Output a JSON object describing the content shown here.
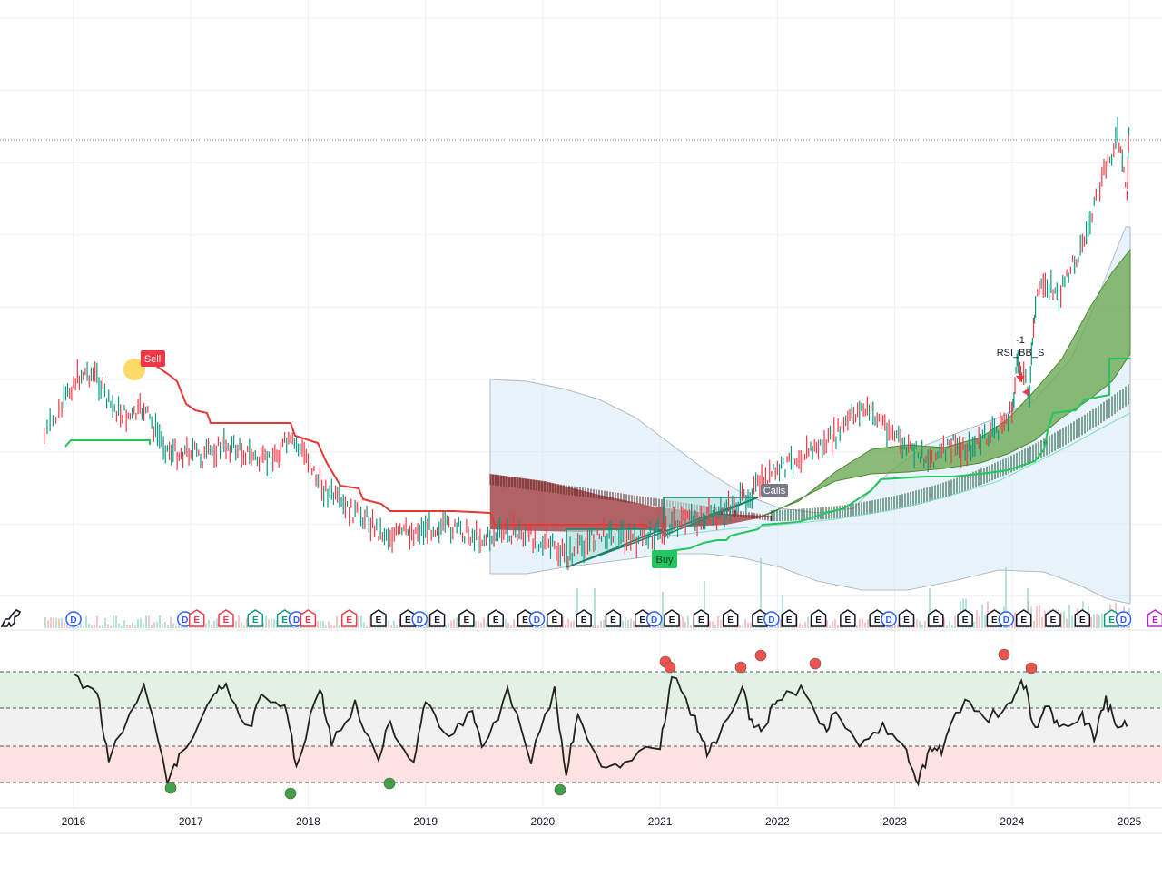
{
  "chart_data": {
    "type": "line",
    "x_axis": {
      "ticks": [
        "2016",
        "2017",
        "2018",
        "2019",
        "2020",
        "2021",
        "2022",
        "2023",
        "2024",
        "2025"
      ]
    },
    "price": {
      "series_type": "candlestick",
      "up_color": "#089981",
      "down_color": "#f23645",
      "points": [
        [
          2015.75,
          480
        ],
        [
          2015.9,
          450
        ],
        [
          2016.0,
          420
        ],
        [
          2016.1,
          410
        ],
        [
          2016.2,
          415
        ],
        [
          2016.3,
          445
        ],
        [
          2016.4,
          455
        ],
        [
          2016.5,
          460
        ],
        [
          2016.6,
          450
        ],
        [
          2016.7,
          475
        ],
        [
          2016.8,
          495
        ],
        [
          2016.9,
          500
        ],
        [
          2017.0,
          495
        ],
        [
          2017.1,
          505
        ],
        [
          2017.2,
          495
        ],
        [
          2017.3,
          490
        ],
        [
          2017.4,
          495
        ],
        [
          2017.5,
          500
        ],
        [
          2017.6,
          510
        ],
        [
          2017.7,
          505
        ],
        [
          2017.8,
          490
        ],
        [
          2017.9,
          490
        ],
        [
          2018.0,
          505
        ],
        [
          2018.1,
          535
        ],
        [
          2018.2,
          545
        ],
        [
          2018.3,
          560
        ],
        [
          2018.4,
          565
        ],
        [
          2018.5,
          570
        ],
        [
          2018.6,
          585
        ],
        [
          2018.7,
          590
        ],
        [
          2018.8,
          588
        ],
        [
          2018.9,
          585
        ],
        [
          2019.0,
          582
        ],
        [
          2019.1,
          580
        ],
        [
          2019.2,
          582
        ],
        [
          2019.3,
          584
        ],
        [
          2019.4,
          590
        ],
        [
          2019.5,
          594
        ],
        [
          2019.6,
          590
        ],
        [
          2019.7,
          585
        ],
        [
          2019.8,
          588
        ],
        [
          2019.9,
          592
        ],
        [
          2020.0,
          598
        ],
        [
          2020.1,
          605
        ],
        [
          2020.2,
          615
        ],
        [
          2020.3,
          605
        ],
        [
          2020.4,
          595
        ],
        [
          2020.5,
          590
        ],
        [
          2020.6,
          588
        ],
        [
          2020.7,
          590
        ],
        [
          2020.8,
          596
        ],
        [
          2020.9,
          590
        ],
        [
          2021.0,
          586
        ],
        [
          2021.1,
          578
        ],
        [
          2021.2,
          575
        ],
        [
          2021.3,
          572
        ],
        [
          2021.4,
          570
        ],
        [
          2021.5,
          565
        ],
        [
          2021.6,
          560
        ],
        [
          2021.7,
          550
        ],
        [
          2021.8,
          540
        ],
        [
          2021.9,
          528
        ],
        [
          2022.0,
          520
        ],
        [
          2022.1,
          510
        ],
        [
          2022.2,
          500
        ],
        [
          2022.3,
          495
        ],
        [
          2022.4,
          490
        ],
        [
          2022.5,
          480
        ],
        [
          2022.6,
          465
        ],
        [
          2022.7,
          450
        ],
        [
          2022.8,
          455
        ],
        [
          2022.9,
          465
        ],
        [
          2023.0,
          480
        ],
        [
          2023.1,
          495
        ],
        [
          2023.2,
          500
        ],
        [
          2023.3,
          505
        ],
        [
          2023.4,
          500
        ],
        [
          2023.5,
          490
        ],
        [
          2023.6,
          495
        ],
        [
          2023.7,
          490
        ],
        [
          2023.8,
          480
        ],
        [
          2023.9,
          470
        ],
        [
          2024.0,
          455
        ],
        [
          2024.05,
          395
        ],
        [
          2024.15,
          430
        ],
        [
          2024.2,
          330
        ],
        [
          2024.3,
          310
        ],
        [
          2024.4,
          330
        ],
        [
          2024.5,
          295
        ],
        [
          2024.6,
          270
        ],
        [
          2024.7,
          230
        ],
        [
          2024.8,
          185
        ],
        [
          2024.9,
          150
        ],
        [
          2024.98,
          215
        ],
        [
          2025.0,
          130
        ]
      ]
    },
    "rsi": {
      "levels": [
        80,
        70,
        50,
        40
      ],
      "points": [
        [
          2016.0,
          5
        ],
        [
          2016.2,
          20
        ],
        [
          2016.3,
          95
        ],
        [
          2016.6,
          10
        ],
        [
          2016.8,
          115
        ],
        [
          2016.9,
          95
        ],
        [
          2017.2,
          20
        ],
        [
          2017.3,
          15
        ],
        [
          2017.5,
          60
        ],
        [
          2017.6,
          25
        ],
        [
          2017.8,
          35
        ],
        [
          2017.9,
          100
        ],
        [
          2018.1,
          15
        ],
        [
          2018.2,
          75
        ],
        [
          2018.4,
          35
        ],
        [
          2018.6,
          90
        ],
        [
          2018.7,
          55
        ],
        [
          2018.9,
          95
        ],
        [
          2019.0,
          25
        ],
        [
          2019.2,
          75
        ],
        [
          2019.4,
          40
        ],
        [
          2019.5,
          85
        ],
        [
          2019.7,
          20
        ],
        [
          2019.9,
          95
        ],
        [
          2020.1,
          20
        ],
        [
          2020.2,
          110
        ],
        [
          2020.3,
          45
        ],
        [
          2020.5,
          105
        ],
        [
          2020.7,
          95
        ],
        [
          2021.0,
          80
        ],
        [
          2021.1,
          0
        ],
        [
          2021.3,
          50
        ],
        [
          2021.4,
          90
        ],
        [
          2021.5,
          70
        ],
        [
          2021.7,
          15
        ],
        [
          2021.8,
          65
        ],
        [
          2021.9,
          55
        ],
        [
          2022.0,
          30
        ],
        [
          2022.2,
          15
        ],
        [
          2022.4,
          60
        ],
        [
          2022.5,
          45
        ],
        [
          2022.7,
          80
        ],
        [
          2022.9,
          55
        ],
        [
          2023.1,
          90
        ],
        [
          2023.2,
          120
        ],
        [
          2023.3,
          85
        ],
        [
          2023.4,
          85
        ],
        [
          2023.6,
          25
        ],
        [
          2023.8,
          50
        ],
        [
          2024.0,
          30
        ],
        [
          2024.1,
          10
        ],
        [
          2024.2,
          65
        ],
        [
          2024.3,
          35
        ],
        [
          2024.4,
          60
        ],
        [
          2024.6,
          45
        ],
        [
          2024.7,
          70
        ],
        [
          2024.8,
          30
        ],
        [
          2024.9,
          60
        ],
        [
          2025.0,
          50
        ]
      ]
    }
  },
  "markers": {
    "sell_label": "Sell",
    "buy_label": "Buy",
    "calls_label": "Calls",
    "rsi_annotation": "RSI_BB_S",
    "rsi_annotation_value": "-1"
  },
  "events": [
    {
      "x": 2016.0,
      "letter": "D",
      "kind": "dividend"
    },
    {
      "x": 2016.95,
      "letter": "D",
      "kind": "dividend"
    },
    {
      "x": 2017.05,
      "letter": "E",
      "kind": "earnings-neg"
    },
    {
      "x": 2017.3,
      "letter": "E",
      "kind": "earnings-neg"
    },
    {
      "x": 2017.55,
      "letter": "E",
      "kind": "earnings-pos"
    },
    {
      "x": 2017.8,
      "letter": "E",
      "kind": "earnings-pos"
    },
    {
      "x": 2017.9,
      "letter": "D",
      "kind": "dividend"
    },
    {
      "x": 2018.0,
      "letter": "E",
      "kind": "earnings-neg"
    },
    {
      "x": 2018.35,
      "letter": "E",
      "kind": "earnings-neg"
    },
    {
      "x": 2018.6,
      "letter": "E",
      "kind": "earnings-future"
    },
    {
      "x": 2018.85,
      "letter": "E",
      "kind": "earnings-future"
    },
    {
      "x": 2018.95,
      "letter": "D",
      "kind": "dividend"
    },
    {
      "x": 2019.1,
      "letter": "E",
      "kind": "earnings-future"
    },
    {
      "x": 2019.35,
      "letter": "E",
      "kind": "earnings-future"
    },
    {
      "x": 2019.6,
      "letter": "E",
      "kind": "earnings-future"
    },
    {
      "x": 2019.85,
      "letter": "E",
      "kind": "earnings-future"
    },
    {
      "x": 2019.95,
      "letter": "D",
      "kind": "dividend"
    },
    {
      "x": 2020.1,
      "letter": "E",
      "kind": "earnings-future"
    },
    {
      "x": 2020.35,
      "letter": "E",
      "kind": "earnings-future"
    },
    {
      "x": 2020.6,
      "letter": "E",
      "kind": "earnings-future"
    },
    {
      "x": 2020.85,
      "letter": "E",
      "kind": "earnings-future"
    },
    {
      "x": 2020.95,
      "letter": "D",
      "kind": "dividend"
    },
    {
      "x": 2021.1,
      "letter": "E",
      "kind": "earnings-future"
    },
    {
      "x": 2021.35,
      "letter": "E",
      "kind": "earnings-future"
    },
    {
      "x": 2021.6,
      "letter": "E",
      "kind": "earnings-future"
    },
    {
      "x": 2021.85,
      "letter": "E",
      "kind": "earnings-future"
    },
    {
      "x": 2021.95,
      "letter": "D",
      "kind": "dividend"
    },
    {
      "x": 2022.1,
      "letter": "E",
      "kind": "earnings-future"
    },
    {
      "x": 2022.35,
      "letter": "E",
      "kind": "earnings-future"
    },
    {
      "x": 2022.6,
      "letter": "E",
      "kind": "earnings-future"
    },
    {
      "x": 2022.85,
      "letter": "E",
      "kind": "earnings-future"
    },
    {
      "x": 2022.95,
      "letter": "D",
      "kind": "dividend"
    },
    {
      "x": 2023.1,
      "letter": "E",
      "kind": "earnings-future"
    },
    {
      "x": 2023.35,
      "letter": "E",
      "kind": "earnings-future"
    },
    {
      "x": 2023.6,
      "letter": "E",
      "kind": "earnings-future"
    },
    {
      "x": 2023.85,
      "letter": "E",
      "kind": "earnings-future"
    },
    {
      "x": 2023.95,
      "letter": "D",
      "kind": "dividend"
    },
    {
      "x": 2024.1,
      "letter": "E",
      "kind": "earnings-future"
    },
    {
      "x": 2024.35,
      "letter": "E",
      "kind": "earnings-future"
    },
    {
      "x": 2024.6,
      "letter": "E",
      "kind": "earnings-future"
    },
    {
      "x": 2024.85,
      "letter": "E",
      "kind": "earnings-pos"
    },
    {
      "x": 2024.95,
      "letter": "D",
      "kind": "dividend"
    },
    {
      "x": 2025.22,
      "letter": "E",
      "kind": "earnings-purple"
    }
  ],
  "colors": {
    "up": "#089981",
    "down": "#f23645",
    "cloud_green": "#6aa84f",
    "cloud_red": "#a0393a",
    "band_fill": "#d6eaf8",
    "trail_green": "#22c55e",
    "trail_red": "#e53935",
    "rsi_line": "#222222",
    "overbought_fill": "#e3f1e4",
    "oversold_fill": "#fde2e2",
    "neutral_fill": "#f1f1f1",
    "grid": "#eef0f3",
    "dividend": "#2962ff",
    "earnings_neg": "#f23645",
    "earnings_pos": "#089981",
    "earnings_future": "#131722",
    "earnings_purple": "#c026d3",
    "sell_marker": "#f23645",
    "buy_marker": "#22c55e",
    "calls_marker": "#787b86"
  }
}
